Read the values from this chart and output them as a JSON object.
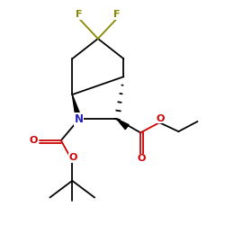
{
  "bg_color": "#ffffff",
  "bond_color": "#000000",
  "N_color": "#2222bb",
  "O_color": "#cc0000",
  "F_color": "#888800",
  "lw": 1.3,
  "fig_size": [
    2.5,
    2.5
  ],
  "dpi": 100,
  "xlim": [
    0,
    10
  ],
  "ylim": [
    0,
    10
  ]
}
